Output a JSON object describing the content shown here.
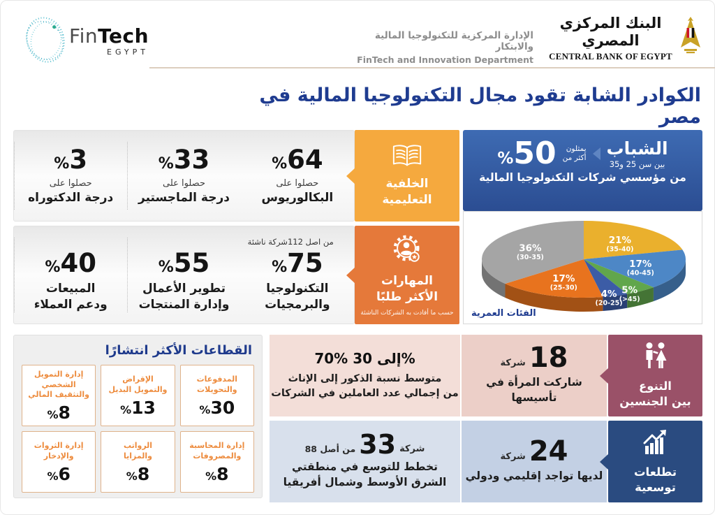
{
  "header": {
    "logo": {
      "fin": "Fin",
      "tech": "Tech",
      "egypt": "EGYPT"
    },
    "department": {
      "ar": "الإدارة المركزية للتكنولوجيا المالية والابتكار",
      "en": "FinTech and Innovation Department"
    },
    "cbe": {
      "ar": "البنك المركزي المصري",
      "en": "CENTRAL BANK OF EGYPT"
    }
  },
  "title": "الكوادر الشابة تقود مجال التكنولوجيا المالية في مصر",
  "youth": {
    "heading": "الشباب",
    "age_range": "بين سن 25 و35",
    "qualifier_line1": "يمثلون",
    "qualifier_line2": "أكثر من",
    "pct": "%",
    "num": "50",
    "caption": "من مؤسسي شركات التكنولوجيا المالية"
  },
  "chart_data": {
    "type": "pie",
    "style": "3d",
    "title": "الفئات العمرية",
    "categories": [
      "(35-40)",
      "(40-45)",
      "(>45)",
      "(20-25)",
      "(25-30)",
      "(30-35)"
    ],
    "values": [
      21,
      17,
      5,
      4,
      17,
      36
    ],
    "labels": [
      "21%",
      "17%",
      "5%",
      "4%",
      "17%",
      "36%"
    ],
    "colors": [
      "#EAB02D",
      "#4D87C6",
      "#61A64C",
      "#3C5CA6",
      "#E8731E",
      "#A5A5A5"
    ],
    "start_angle": 0,
    "direction": "clockwise",
    "legend": "none"
  },
  "education": {
    "label1": "الخلفية",
    "label2": "التعليمية",
    "items": [
      {
        "pct": "%",
        "num": "64",
        "cap1": "حصلوا على",
        "cap2": "البكالوريوس"
      },
      {
        "pct": "%",
        "num": "33",
        "cap1": "حصلوا على",
        "cap2": "درجة الماجستير"
      },
      {
        "pct": "%",
        "num": "3",
        "cap1": "حصلوا على",
        "cap2": "درجة الدكتوراه"
      }
    ]
  },
  "skills": {
    "label1": "المهارات",
    "label2": "الأكثر طلبًا",
    "note": "حسب ما أفادت به الشركات الناشئة",
    "items": [
      {
        "pre": "من اصل 112شركة ناشئة",
        "pct": "%",
        "num": "75",
        "cap1": "التكنولوجيا",
        "cap2": "والبرمجيات"
      },
      {
        "pre": "",
        "pct": "%",
        "num": "55",
        "cap1": "تطوير الأعمال",
        "cap2": "وإدارة المنتجات"
      },
      {
        "pre": "",
        "pct": "%",
        "num": "40",
        "cap1": "المبيعات",
        "cap2": "ودعم العملاء"
      }
    ]
  },
  "sectors": {
    "title": "القطاعات الأكثر انتشارًا",
    "items": [
      {
        "l1": "المدفوعات",
        "l2": "والتحويلات",
        "pct": "%",
        "num": "30"
      },
      {
        "l1": "الإقراض",
        "l2": "والتمويل البديل",
        "pct": "%",
        "num": "13"
      },
      {
        "l1": "إدارة التمويل الشخصي",
        "l2": "والتثقيف المالي",
        "pct": "%",
        "num": "8"
      },
      {
        "l1": "إدارة المحاسبة",
        "l2": "والمصروفات",
        "pct": "%",
        "num": "8"
      },
      {
        "l1": "الرواتب",
        "l2": "والمزايا",
        "pct": "%",
        "num": "8"
      },
      {
        "l1": "إدارة الثروات",
        "l2": "والإدخار",
        "pct": "%",
        "num": "6"
      }
    ]
  },
  "gender": {
    "label1": "التنوع",
    "label2": "بين الجنسين",
    "founded": {
      "num": "18",
      "unit": "شركة",
      "caption": "شاركت المرأة في تأسيسها"
    },
    "ratio": {
      "value": "70% إلى 30%",
      "cap1": "متوسط نسبة الذكور إلى الإناث",
      "cap2": "من إجمالي عدد العاملين في الشركات"
    }
  },
  "expansion": {
    "label1": "تطلعات",
    "label2": "توسعية",
    "presence": {
      "num": "24",
      "unit": "شركة",
      "caption": "لديها تواجد إقليمي ودولي"
    },
    "plan": {
      "prefix": "من أصل 88",
      "num": "33",
      "unit": "شركة",
      "cap1": "تخطط للتوسع في منطقتي",
      "cap2": "الشرق الأوسط وشمال أفريقيا"
    }
  },
  "colors": {
    "title_navy": "#1F3C90",
    "education_box": "#F5A93E",
    "skills_box": "#E5793A",
    "youth_box_top": "#3E6BB3",
    "youth_box_bottom": "#2B4D92",
    "gender_box": "#9A5168",
    "expansion_box": "#2A4B80",
    "gender_cell": "#ECCFC8",
    "gender_cell_light": "#F3DED8",
    "expansion_cell": "#C3D0E4",
    "expansion_cell_light": "#D8E0EC",
    "divider_tan": "#DCCEBE"
  }
}
